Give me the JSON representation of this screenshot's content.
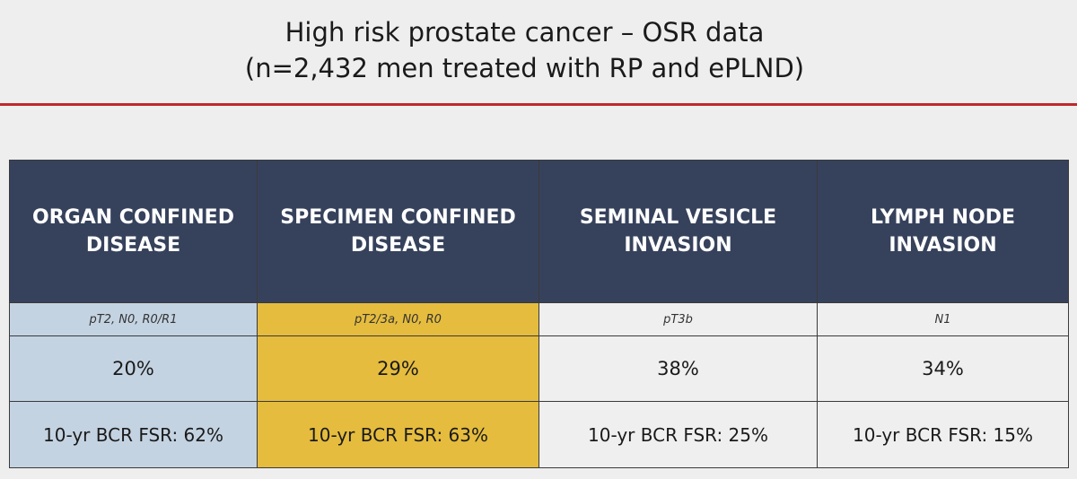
{
  "title": {
    "line1": "High risk prostate cancer – OSR data",
    "line2": "(n=2,432 men treated with RP and ePLND)"
  },
  "colors": {
    "accent_rule": "#c0282a",
    "header_bg": "#36425c",
    "highlight_blue": "#c4d3e2",
    "highlight_gold": "#e5bc3e"
  },
  "table": {
    "columns": [
      {
        "header": [
          "ORGAN CONFINED",
          "DISEASE"
        ],
        "staging": "pT2, N0, R0/R1",
        "percent": "20%",
        "bcr": "10-yr BCR FSR: 62%",
        "highlight": "blue"
      },
      {
        "header": [
          "SPECIMEN CONFINED",
          "DISEASE"
        ],
        "staging": "pT2/3a, N0, R0",
        "percent": "29%",
        "bcr": "10-yr BCR FSR: 63%",
        "highlight": "gold"
      },
      {
        "header": [
          "SEMINAL VESICLE",
          "INVASION"
        ],
        "staging": "pT3b",
        "percent": "38%",
        "bcr": "10-yr BCR FSR: 25%",
        "highlight": "none"
      },
      {
        "header": [
          "LYMPH NODE",
          "INVASION"
        ],
        "staging": "N1",
        "percent": "34%",
        "bcr": "10-yr BCR FSR: 15%",
        "highlight": "none"
      }
    ]
  }
}
